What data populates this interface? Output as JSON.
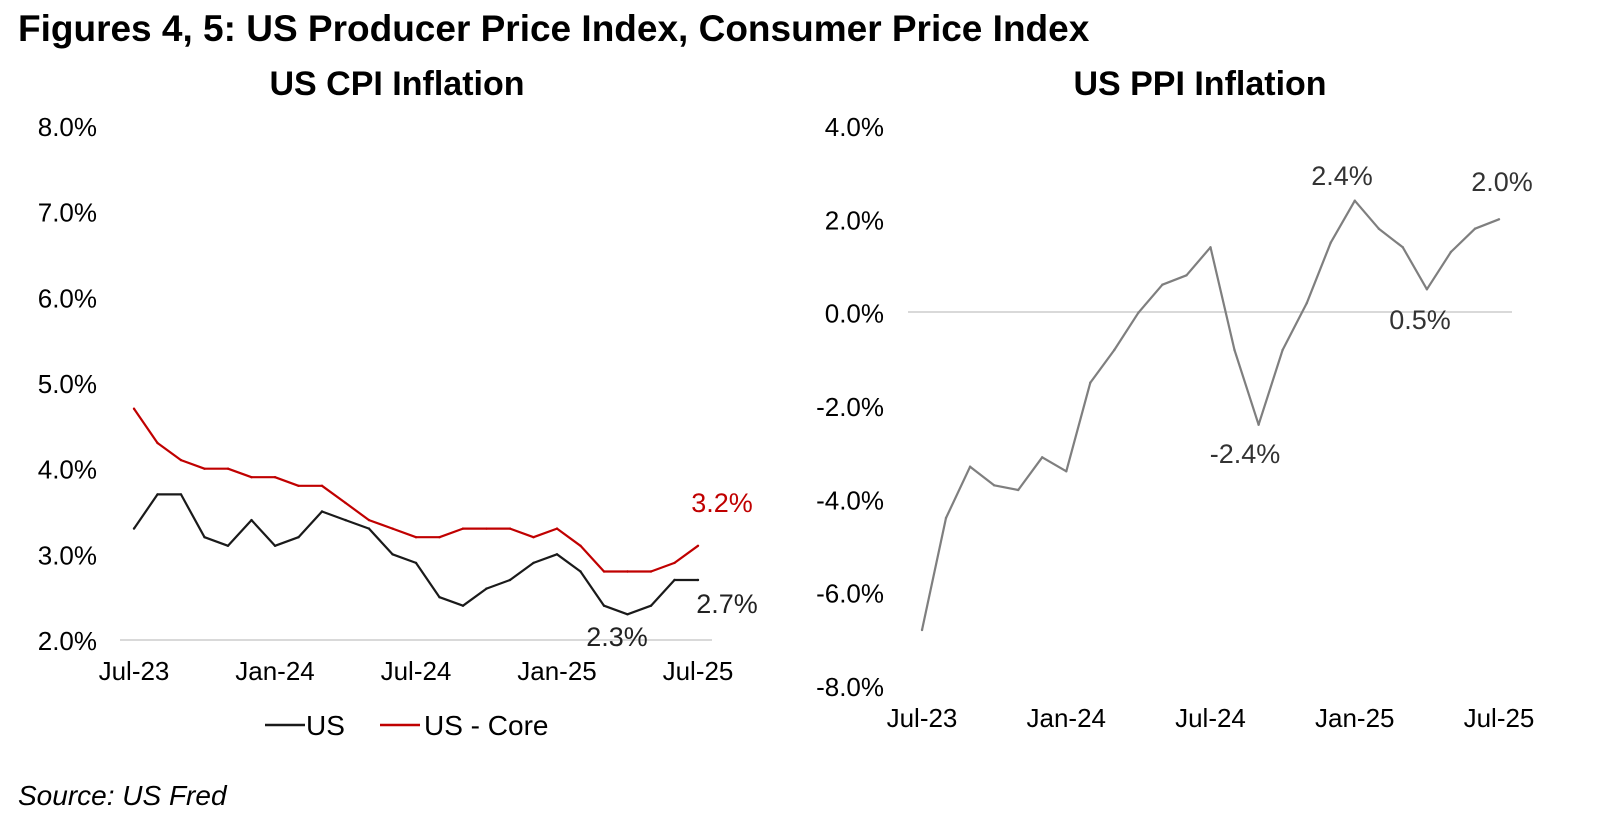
{
  "figure_title": "Figures 4, 5: US Producer Price Index, Consumer Price Index",
  "source": "Source: US Fred",
  "chart_data": [
    {
      "type": "line",
      "title": "US CPI Inflation",
      "xlabel": "",
      "ylabel": "",
      "ylim": [
        2.0,
        8.0
      ],
      "yticks": [
        2.0,
        3.0,
        4.0,
        5.0,
        6.0,
        7.0,
        8.0
      ],
      "ytick_labels": [
        "2.0%",
        "3.0%",
        "4.0%",
        "5.0%",
        "6.0%",
        "7.0%",
        "8.0%"
      ],
      "xtick_labels": [
        "Jul-23",
        "Jan-24",
        "Jul-24",
        "Jan-25",
        "Jul-25"
      ],
      "xtick_index": [
        0,
        6,
        12,
        18,
        24
      ],
      "categories": [
        "Jul-23",
        "Aug-23",
        "Sep-23",
        "Oct-23",
        "Nov-23",
        "Dec-23",
        "Jan-24",
        "Feb-24",
        "Mar-24",
        "Apr-24",
        "May-24",
        "Jun-24",
        "Jul-24",
        "Aug-24",
        "Sep-24",
        "Oct-24",
        "Nov-24",
        "Dec-24",
        "Jan-25",
        "Feb-25",
        "Mar-25",
        "Apr-25",
        "May-25",
        "Jun-25",
        "Jul-25"
      ],
      "series": [
        {
          "name": "US",
          "color": "#1a1a1a",
          "values": [
            3.3,
            3.7,
            3.7,
            3.2,
            3.1,
            3.4,
            3.1,
            3.2,
            3.5,
            3.4,
            3.3,
            3.0,
            2.9,
            2.5,
            2.4,
            2.6,
            2.7,
            2.9,
            3.0,
            2.8,
            2.4,
            2.3,
            2.4,
            2.7,
            2.7
          ]
        },
        {
          "name": "US - Core",
          "color": "#c00000",
          "values": [
            4.7,
            4.3,
            4.1,
            4.0,
            4.0,
            3.9,
            3.9,
            3.8,
            3.8,
            3.6,
            3.4,
            3.3,
            3.2,
            3.2,
            3.3,
            3.3,
            3.3,
            3.2,
            3.3,
            3.1,
            2.8,
            2.8,
            2.8,
            2.9,
            3.1
          ]
        }
      ],
      "annotations": [
        {
          "text": "3.2%",
          "series": "US - Core",
          "color": "#c00000"
        },
        {
          "text": "2.7%",
          "series": "US",
          "color": "#222222"
        },
        {
          "text": "2.3%",
          "series": "US",
          "color": "#222222"
        }
      ],
      "legend": {
        "position": "bottom",
        "items": [
          "US",
          "US - Core"
        ]
      },
      "grid": false
    },
    {
      "type": "line",
      "title": "US PPI Inflation",
      "xlabel": "",
      "ylabel": "",
      "ylim": [
        -8.0,
        4.0
      ],
      "yticks": [
        -8.0,
        -6.0,
        -4.0,
        -2.0,
        0.0,
        2.0,
        4.0
      ],
      "ytick_labels": [
        "-8.0%",
        "-6.0%",
        "-4.0%",
        "-2.0%",
        "0.0%",
        "2.0%",
        "4.0%"
      ],
      "xtick_labels": [
        "Jul-23",
        "Jan-24",
        "Jul-24",
        "Jan-25",
        "Jul-25"
      ],
      "xtick_index": [
        0,
        6,
        12,
        18,
        24
      ],
      "categories": [
        "Jul-23",
        "Aug-23",
        "Sep-23",
        "Oct-23",
        "Nov-23",
        "Dec-23",
        "Jan-24",
        "Feb-24",
        "Mar-24",
        "Apr-24",
        "May-24",
        "Jun-24",
        "Jul-24",
        "Aug-24",
        "Sep-24",
        "Oct-24",
        "Nov-24",
        "Dec-24",
        "Jan-25",
        "Feb-25",
        "Mar-25",
        "Apr-25",
        "May-25",
        "Jun-25",
        "Jul-25"
      ],
      "series": [
        {
          "name": "US PPI",
          "color": "#7f7f7f",
          "values": [
            -6.8,
            -4.4,
            -3.3,
            -3.7,
            -3.8,
            -3.1,
            -3.4,
            -1.5,
            -0.8,
            0.0,
            0.6,
            0.8,
            1.4,
            -0.8,
            -2.4,
            -0.8,
            0.2,
            1.5,
            2.4,
            1.8,
            1.4,
            0.5,
            1.3,
            1.8,
            2.0
          ]
        }
      ],
      "annotations": [
        {
          "text": "2.4%",
          "series": "US PPI"
        },
        {
          "text": "2.0%",
          "series": "US PPI"
        },
        {
          "text": "0.5%",
          "series": "US PPI"
        },
        {
          "text": "-2.4%",
          "series": "US PPI"
        }
      ],
      "grid": false
    }
  ]
}
